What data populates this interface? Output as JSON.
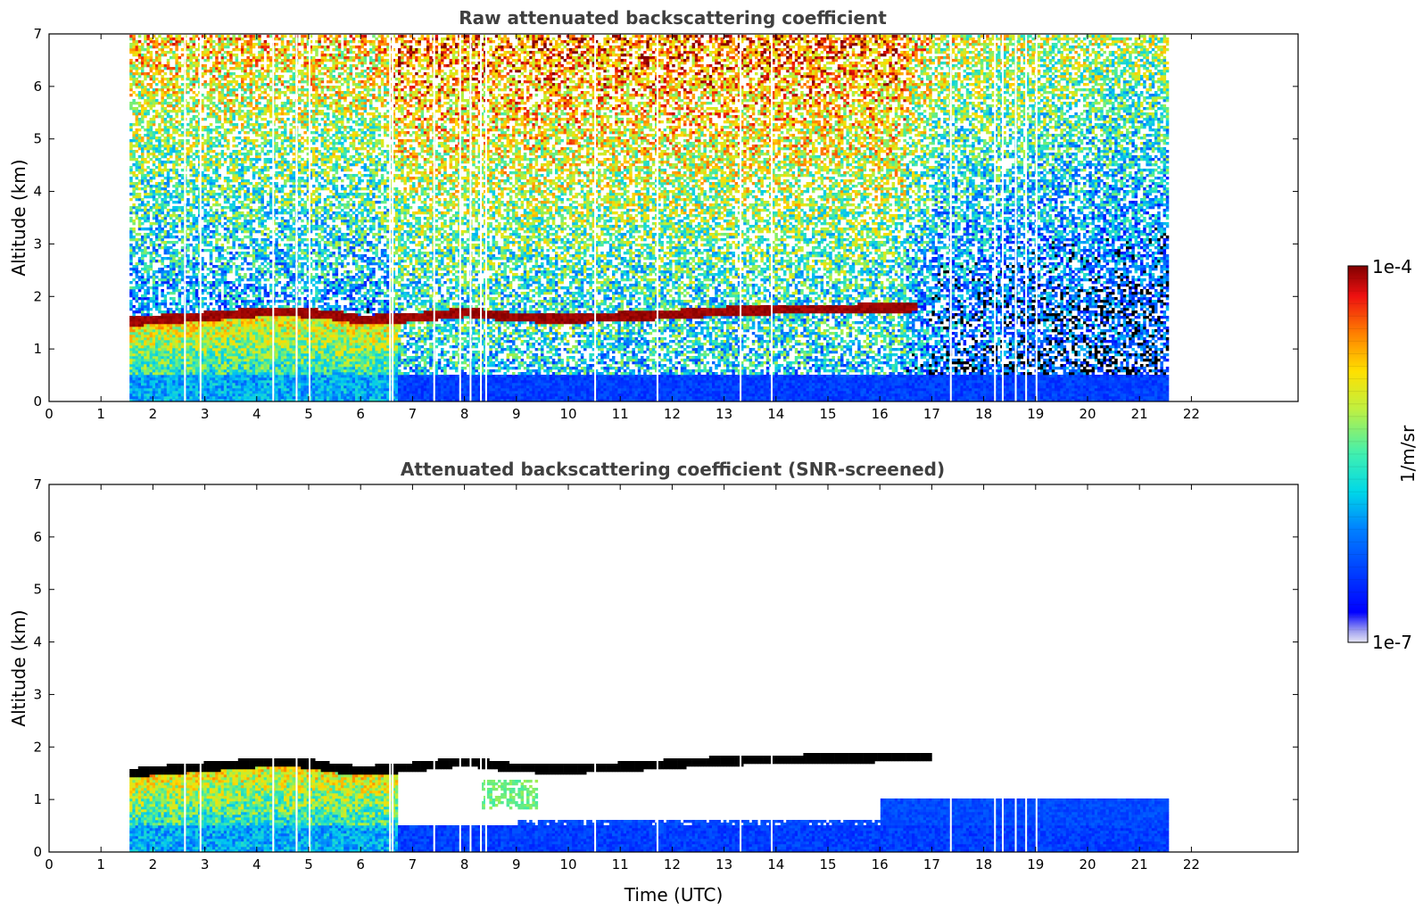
{
  "colorbar": {
    "label": "1/m/sr",
    "max_label": "1e-4",
    "min_label": "1e-7",
    "scale": "log",
    "range": [
      1e-07,
      0.0001
    ],
    "colormap": "jet"
  },
  "chart_data": [
    {
      "type": "heatmap",
      "title": "Raw attenuated backscattering coefficient",
      "xlabel": "",
      "ylabel": "Altitude (km)",
      "xlim": [
        0,
        24
      ],
      "ylim": [
        0,
        7
      ],
      "xticks": [
        "0",
        "1",
        "2",
        "3",
        "4",
        "5",
        "6",
        "7",
        "8",
        "9",
        "10",
        "11",
        "12",
        "13",
        "14",
        "15",
        "16",
        "17",
        "18",
        "19",
        "20",
        "21",
        "22"
      ],
      "yticks": [
        "0",
        "1",
        "2",
        "3",
        "4",
        "5",
        "6",
        "7"
      ],
      "data_extent_x": [
        1.55,
        21.6
      ],
      "cloud_layer": {
        "time": [
          1.55,
          2,
          3,
          4,
          4.5,
          5,
          5.5,
          6,
          6.5,
          7,
          8,
          9,
          10,
          11,
          12,
          13,
          14,
          15,
          16,
          16.7
        ],
        "altitude": [
          1.52,
          1.56,
          1.62,
          1.7,
          1.72,
          1.68,
          1.64,
          1.55,
          1.58,
          1.6,
          1.7,
          1.6,
          1.58,
          1.62,
          1.66,
          1.72,
          1.75,
          1.76,
          1.78,
          1.8
        ]
      },
      "grid": false
    },
    {
      "type": "heatmap",
      "title": "Attenuated backscattering coefficient (SNR-screened)",
      "xlabel": "Time (UTC)",
      "ylabel": "Altitude (km)",
      "xlim": [
        0,
        24
      ],
      "ylim": [
        0,
        7
      ],
      "xticks": [
        "0",
        "1",
        "2",
        "3",
        "4",
        "5",
        "6",
        "7",
        "8",
        "9",
        "10",
        "11",
        "12",
        "13",
        "14",
        "15",
        "16",
        "17",
        "18",
        "19",
        "20",
        "21",
        "22"
      ],
      "yticks": [
        "0",
        "1",
        "2",
        "3",
        "4",
        "5",
        "6",
        "7"
      ],
      "data_extent_x": [
        1.55,
        21.6
      ],
      "cloud_layer": {
        "time": [
          1.55,
          2,
          3,
          4,
          4.5,
          5,
          5.5,
          6,
          6.5,
          7,
          8,
          9,
          10,
          11,
          12,
          13,
          14,
          15,
          16,
          17
        ],
        "altitude": [
          1.5,
          1.55,
          1.62,
          1.7,
          1.72,
          1.68,
          1.6,
          1.55,
          1.58,
          1.62,
          1.72,
          1.6,
          1.58,
          1.62,
          1.68,
          1.74,
          1.76,
          1.78,
          1.8,
          1.82
        ]
      },
      "grid": false
    }
  ]
}
